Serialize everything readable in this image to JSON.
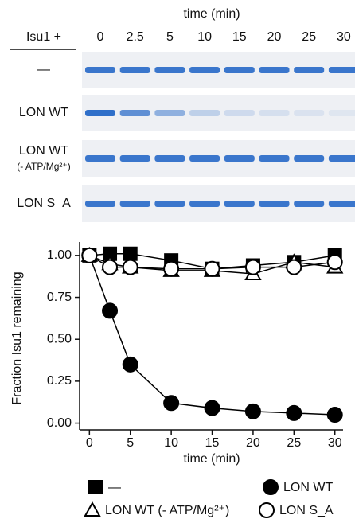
{
  "gel": {
    "title": "time (min)",
    "row_header": "Isu1 +",
    "lanes": [
      "0",
      "2.5",
      "5",
      "10",
      "15",
      "20",
      "25",
      "30"
    ],
    "rows": [
      "—",
      "LON WT",
      "LON WT",
      "LON S_A"
    ],
    "row_note": "(- ATP/Mg²⁺)"
  },
  "chart_data": {
    "type": "line",
    "ylabel": "Fraction Isu1 remaining",
    "xlabel": "time (min)",
    "x": [
      0,
      2.5,
      5,
      10,
      15,
      20,
      25,
      30
    ],
    "xlim": [
      -1.2,
      31
    ],
    "xticks": [
      0,
      5,
      10,
      15,
      20,
      25,
      30
    ],
    "ylim": [
      -0.04,
      1.08
    ],
    "yticks": [
      {
        "value": 0,
        "label": "0.00"
      },
      {
        "value": 0.25,
        "label": "0.25"
      },
      {
        "value": 0.5,
        "label": "0.50"
      },
      {
        "value": 0.75,
        "label": "0.75"
      },
      {
        "value": 1,
        "label": "1.00"
      }
    ],
    "series": [
      {
        "name": "—",
        "color": "#000000",
        "marker": "square",
        "filled": true,
        "values": [
          1.0,
          1.01,
          1.01,
          0.97,
          0.92,
          0.94,
          0.96,
          1.0
        ]
      },
      {
        "name": "LON WT",
        "color": "#000000",
        "marker": "circle",
        "filled": true,
        "values": [
          1.0,
          0.67,
          0.35,
          0.12,
          0.09,
          0.07,
          0.06,
          0.05
        ]
      },
      {
        "name": "LON WT (- ATP/Mg²⁺)",
        "color": "#000000",
        "marker": "triangle",
        "filled": false,
        "values": [
          1.0,
          0.95,
          0.93,
          0.91,
          0.91,
          0.89,
          0.96,
          0.93
        ]
      },
      {
        "name": "LON S_A",
        "color": "#000000",
        "marker": "circle",
        "filled": false,
        "values": [
          1.0,
          0.93,
          0.93,
          0.92,
          0.92,
          0.93,
          0.93,
          0.96
        ]
      }
    ]
  }
}
